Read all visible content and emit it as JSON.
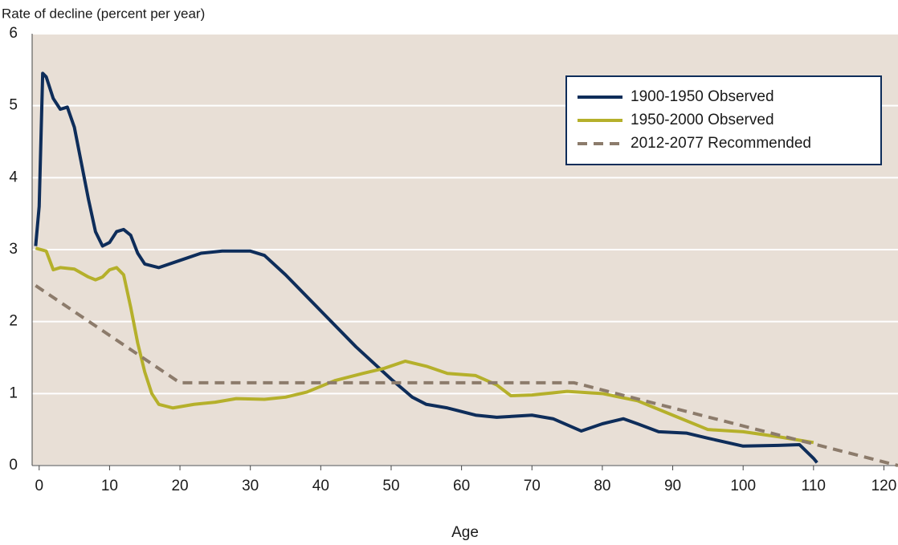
{
  "chart_data": {
    "type": "line",
    "title": "Rate of decline (percent per year)",
    "x_label": "Age",
    "xlim": [
      -1,
      122
    ],
    "xticks": [
      0,
      10,
      20,
      30,
      40,
      50,
      60,
      70,
      80,
      90,
      100,
      110,
      120
    ],
    "ylim": [
      0,
      6
    ],
    "yticks": [
      0,
      1,
      2,
      3,
      4,
      5,
      6
    ],
    "grid": true,
    "legend": "upper right",
    "series": [
      {
        "name": "1900-1950 Observed",
        "color": "#0e2d5a",
        "style": "solid",
        "x": [
          -0.5,
          0,
          0.5,
          1,
          2,
          3,
          4,
          5,
          6,
          7,
          8,
          9,
          10,
          11,
          12,
          13,
          14,
          15,
          17,
          20,
          23,
          26,
          30,
          32,
          35,
          40,
          45,
          50,
          53,
          55,
          58,
          62,
          65,
          70,
          73,
          77,
          80,
          83,
          85,
          88,
          92,
          95,
          100,
          105,
          108,
          110,
          110.5
        ],
        "values": [
          3.05,
          3.6,
          5.45,
          5.4,
          5.1,
          4.95,
          4.98,
          4.7,
          4.2,
          3.7,
          3.25,
          3.05,
          3.1,
          3.25,
          3.28,
          3.2,
          2.95,
          2.8,
          2.75,
          2.85,
          2.95,
          2.98,
          2.98,
          2.92,
          2.65,
          2.15,
          1.65,
          1.2,
          0.95,
          0.85,
          0.8,
          0.7,
          0.67,
          0.7,
          0.65,
          0.48,
          0.58,
          0.65,
          0.58,
          0.47,
          0.45,
          0.38,
          0.27,
          0.28,
          0.29,
          0.1,
          0.04
        ]
      },
      {
        "name": "1950-2000 Observed",
        "color": "#b5b02b",
        "style": "solid",
        "x": [
          -0.5,
          1,
          2,
          3,
          5,
          7,
          8,
          9,
          10,
          11,
          12,
          13,
          14,
          15,
          16,
          17,
          19,
          22,
          25,
          28,
          32,
          35,
          38,
          42,
          46,
          49,
          52,
          55,
          58,
          62,
          65,
          67,
          70,
          75,
          80,
          85,
          90,
          95,
          100,
          105,
          110
        ],
        "values": [
          3.02,
          2.98,
          2.72,
          2.75,
          2.73,
          2.62,
          2.58,
          2.62,
          2.72,
          2.75,
          2.65,
          2.2,
          1.7,
          1.3,
          1.0,
          0.85,
          0.8,
          0.85,
          0.88,
          0.93,
          0.92,
          0.95,
          1.02,
          1.18,
          1.28,
          1.35,
          1.45,
          1.38,
          1.28,
          1.25,
          1.12,
          0.97,
          0.98,
          1.03,
          1.0,
          0.9,
          0.7,
          0.5,
          0.47,
          0.4,
          0.32
        ]
      },
      {
        "name": "2012-2077 Recommended",
        "color": "#8c7b6b",
        "style": "dashed",
        "x": [
          -0.5,
          20,
          76,
          122
        ],
        "values": [
          2.5,
          1.15,
          1.15,
          0
        ]
      }
    ]
  }
}
